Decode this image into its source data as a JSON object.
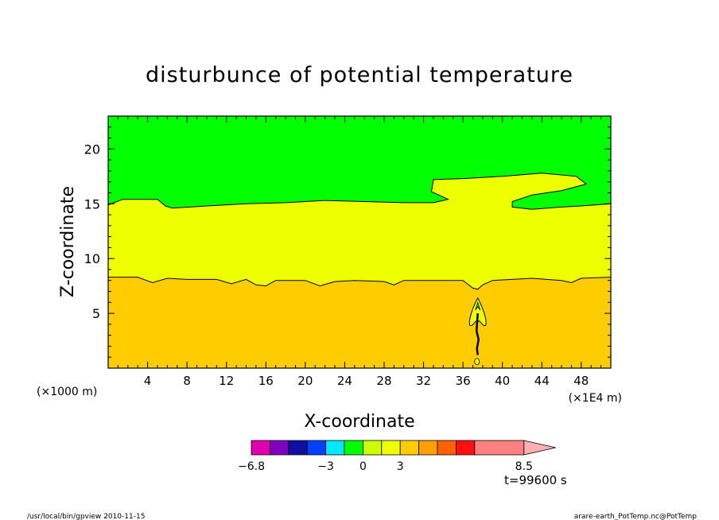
{
  "chart_data": {
    "type": "heatmap",
    "title": "disturbunce of potential temperature",
    "xlabel": "X-coordinate",
    "ylabel": "Z-coordinate",
    "x_unit_left": "(×1000 m)",
    "x_unit_right": "(×1E4 m)",
    "x_ticks": [
      "4",
      "8",
      "12",
      "16",
      "20",
      "24",
      "28",
      "32",
      "36",
      "40",
      "44",
      "48"
    ],
    "y_ticks": [
      "5",
      "10",
      "15",
      "20"
    ],
    "xlim": [
      0,
      51
    ],
    "ylim": [
      0,
      23
    ],
    "regions": [
      {
        "name": "upper",
        "color": "#00ff00"
      },
      {
        "name": "middle",
        "color": "#eeff00"
      },
      {
        "name": "lower",
        "color": "#ffcc00"
      }
    ],
    "boundaries": {
      "lower_middle": [
        [
          0,
          8.3
        ],
        [
          3,
          8.3
        ],
        [
          4.5,
          7.8
        ],
        [
          6,
          8.2
        ],
        [
          8,
          8.1
        ],
        [
          11,
          8.1
        ],
        [
          12.5,
          7.7
        ],
        [
          14,
          8.1
        ],
        [
          15,
          7.6
        ],
        [
          16,
          7.5
        ],
        [
          17,
          8
        ],
        [
          20,
          8
        ],
        [
          21.5,
          7.5
        ],
        [
          23,
          7.9
        ],
        [
          25,
          8
        ],
        [
          28,
          7.9
        ],
        [
          29,
          7.6
        ],
        [
          30,
          8
        ],
        [
          34,
          8
        ],
        [
          36,
          8
        ],
        [
          37,
          7.3
        ],
        [
          37.5,
          7.2
        ],
        [
          38,
          7.6
        ],
        [
          39,
          8
        ],
        [
          43,
          8.2
        ],
        [
          46,
          8
        ],
        [
          47,
          7.8
        ],
        [
          48,
          8.2
        ],
        [
          51,
          8.3
        ]
      ],
      "middle_upper": [
        [
          0,
          14.9
        ],
        [
          1.5,
          15.4
        ],
        [
          5,
          15.4
        ],
        [
          5.8,
          14.8
        ],
        [
          6.5,
          14.6
        ],
        [
          10,
          14.8
        ],
        [
          14,
          15
        ],
        [
          18,
          15.1
        ],
        [
          22,
          15.3
        ],
        [
          26,
          15.2
        ],
        [
          30,
          15.1
        ],
        [
          33,
          15.1
        ],
        [
          34.5,
          15.4
        ],
        [
          32.8,
          16.1
        ],
        [
          33,
          17.2
        ],
        [
          36,
          17.3
        ],
        [
          40,
          17.5
        ],
        [
          44,
          17.8
        ],
        [
          47.5,
          17.5
        ],
        [
          48.5,
          16.8
        ],
        [
          46,
          16.2
        ],
        [
          43,
          15.8
        ],
        [
          41,
          15.2
        ],
        [
          41,
          14.7
        ],
        [
          43,
          14.5
        ],
        [
          46,
          14.7
        ],
        [
          48,
          14.8
        ],
        [
          51,
          15
        ]
      ]
    },
    "colorbar": {
      "colors": [
        "#e000b0",
        "#8000c0",
        "#1010a0",
        "#0040ff",
        "#00e8ff",
        "#00ff00",
        "#ccff00",
        "#eeff00",
        "#ffcc00",
        "#ffa000",
        "#ff6000",
        "#ff1010",
        "#ff8080"
      ],
      "arrow_color": "#ffb0b0",
      "labels": [
        "−6.8",
        "−3",
        "0",
        "3",
        "8.5"
      ],
      "label_positions": [
        0,
        4,
        6,
        8,
        12
      ]
    },
    "time_label": "t=99600 s",
    "footer_left": "/usr/local/bin/gpview   2010-11-15",
    "footer_right": "arare-earth_PotTemp.nc@PotTemp"
  }
}
